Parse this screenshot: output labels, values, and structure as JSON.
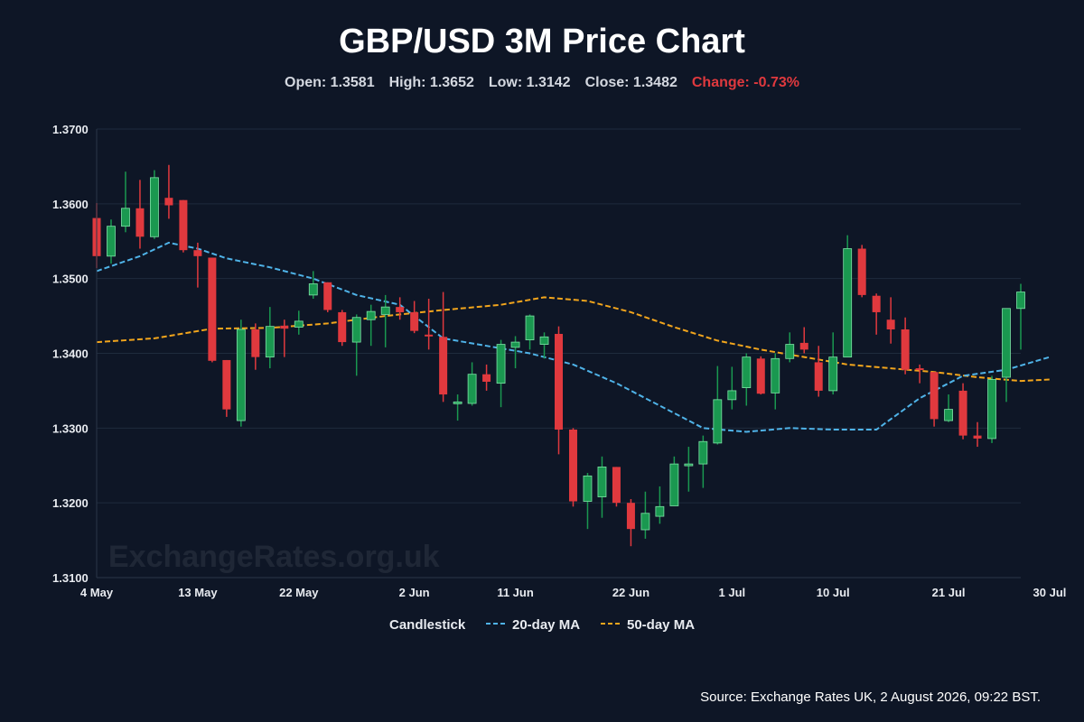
{
  "header": {
    "title": "GBP/USD 3M Price Chart",
    "open_label": "Open: 1.3581",
    "high_label": "High: 1.3652",
    "low_label": "Low: 1.3142",
    "close_label": "Close: 1.3482",
    "change_label": "Change: -0.73%"
  },
  "watermark": "ExchangeRates.org.uk",
  "legend": {
    "candles": "Candlestick",
    "ma20": "20-day MA",
    "ma50": "50-day MA"
  },
  "source": "Source: Exchange Rates UK, 2 August 2026, 09:22 BST.",
  "colors": {
    "up": "#1a9850",
    "down": "#e0393e",
    "ma20": "#4fb3e8",
    "ma50": "#f2a51c",
    "grid": "#1f2b3d",
    "background": "#0e1626"
  },
  "chart_data": {
    "type": "candlestick",
    "title": "GBP/USD 3M Price Chart",
    "ylim": [
      1.31,
      1.37
    ],
    "y_ticks": [
      "1.3100",
      "1.3200",
      "1.3300",
      "1.3400",
      "1.3500",
      "1.3600",
      "1.3700"
    ],
    "x_ticks": [
      "4 May",
      "13 May",
      "22 May",
      "2 Jun",
      "11 Jun",
      "22 Jun",
      "1 Jul",
      "10 Jul",
      "21 Jul",
      "30 Jul"
    ],
    "x_tick_index": [
      0,
      7,
      14,
      22,
      29,
      37,
      44,
      51,
      59,
      66
    ],
    "grid": true,
    "legend_position": "bottom",
    "candles": [
      {
        "o": 1.3581,
        "h": 1.3601,
        "l": 1.3514,
        "c": 1.353
      },
      {
        "o": 1.353,
        "h": 1.3579,
        "l": 1.352,
        "c": 1.357
      },
      {
        "o": 1.357,
        "h": 1.3643,
        "l": 1.3562,
        "c": 1.3594
      },
      {
        "o": 1.3594,
        "h": 1.3632,
        "l": 1.354,
        "c": 1.3556
      },
      {
        "o": 1.3556,
        "h": 1.3645,
        "l": 1.3553,
        "c": 1.3635
      },
      {
        "o": 1.3608,
        "h": 1.3652,
        "l": 1.358,
        "c": 1.3598
      },
      {
        "o": 1.3605,
        "h": 1.3605,
        "l": 1.3535,
        "c": 1.3538
      },
      {
        "o": 1.3538,
        "h": 1.3548,
        "l": 1.3488,
        "c": 1.353
      },
      {
        "o": 1.3528,
        "h": 1.3528,
        "l": 1.3388,
        "c": 1.339
      },
      {
        "o": 1.3391,
        "h": 1.3391,
        "l": 1.3315,
        "c": 1.3325
      },
      {
        "o": 1.331,
        "h": 1.3445,
        "l": 1.3302,
        "c": 1.3432
      },
      {
        "o": 1.3432,
        "h": 1.344,
        "l": 1.3378,
        "c": 1.3395
      },
      {
        "o": 1.3395,
        "h": 1.3462,
        "l": 1.338,
        "c": 1.3436
      },
      {
        "o": 1.3437,
        "h": 1.3445,
        "l": 1.3395,
        "c": 1.3433
      },
      {
        "o": 1.3435,
        "h": 1.3457,
        "l": 1.3425,
        "c": 1.3443
      },
      {
        "o": 1.3478,
        "h": 1.351,
        "l": 1.3473,
        "c": 1.3493
      },
      {
        "o": 1.3495,
        "h": 1.3495,
        "l": 1.3455,
        "c": 1.3458
      },
      {
        "o": 1.3455,
        "h": 1.3458,
        "l": 1.341,
        "c": 1.3415
      },
      {
        "o": 1.3415,
        "h": 1.3452,
        "l": 1.337,
        "c": 1.3448
      },
      {
        "o": 1.3445,
        "h": 1.3465,
        "l": 1.341,
        "c": 1.3456
      },
      {
        "o": 1.3452,
        "h": 1.3478,
        "l": 1.3408,
        "c": 1.3462
      },
      {
        "o": 1.3462,
        "h": 1.3475,
        "l": 1.3445,
        "c": 1.3455
      },
      {
        "o": 1.3455,
        "h": 1.347,
        "l": 1.3427,
        "c": 1.343
      },
      {
        "o": 1.3425,
        "h": 1.3473,
        "l": 1.3405,
        "c": 1.3423
      },
      {
        "o": 1.3422,
        "h": 1.3482,
        "l": 1.3335,
        "c": 1.3345
      },
      {
        "o": 1.3335,
        "h": 1.3345,
        "l": 1.331,
        "c": 1.3335
      },
      {
        "o": 1.3333,
        "h": 1.3388,
        "l": 1.333,
        "c": 1.3372
      },
      {
        "o": 1.3372,
        "h": 1.3385,
        "l": 1.335,
        "c": 1.3362
      },
      {
        "o": 1.336,
        "h": 1.3418,
        "l": 1.3328,
        "c": 1.3412
      },
      {
        "o": 1.3408,
        "h": 1.3423,
        "l": 1.338,
        "c": 1.3415
      },
      {
        "o": 1.3418,
        "h": 1.3452,
        "l": 1.3405,
        "c": 1.345
      },
      {
        "o": 1.3412,
        "h": 1.3428,
        "l": 1.3393,
        "c": 1.3422
      },
      {
        "o": 1.3426,
        "h": 1.3436,
        "l": 1.3265,
        "c": 1.3298
      },
      {
        "o": 1.3298,
        "h": 1.33,
        "l": 1.3195,
        "c": 1.3202
      },
      {
        "o": 1.3202,
        "h": 1.324,
        "l": 1.3165,
        "c": 1.3236
      },
      {
        "o": 1.3208,
        "h": 1.3262,
        "l": 1.318,
        "c": 1.3248
      },
      {
        "o": 1.3248,
        "h": 1.3248,
        "l": 1.3195,
        "c": 1.32
      },
      {
        "o": 1.32,
        "h": 1.3205,
        "l": 1.3142,
        "c": 1.3165
      },
      {
        "o": 1.3164,
        "h": 1.3215,
        "l": 1.3152,
        "c": 1.3186
      },
      {
        "o": 1.3182,
        "h": 1.3222,
        "l": 1.3172,
        "c": 1.3195
      },
      {
        "o": 1.3196,
        "h": 1.3262,
        "l": 1.3196,
        "c": 1.3252
      },
      {
        "o": 1.3252,
        "h": 1.3275,
        "l": 1.3215,
        "c": 1.3252
      },
      {
        "o": 1.3252,
        "h": 1.329,
        "l": 1.322,
        "c": 1.3282
      },
      {
        "o": 1.328,
        "h": 1.3383,
        "l": 1.3278,
        "c": 1.3338
      },
      {
        "o": 1.3338,
        "h": 1.3382,
        "l": 1.3325,
        "c": 1.335
      },
      {
        "o": 1.3354,
        "h": 1.34,
        "l": 1.333,
        "c": 1.3395
      },
      {
        "o": 1.3393,
        "h": 1.3396,
        "l": 1.3345,
        "c": 1.3346
      },
      {
        "o": 1.3347,
        "h": 1.34,
        "l": 1.3325,
        "c": 1.3393
      },
      {
        "o": 1.3393,
        "h": 1.3428,
        "l": 1.3388,
        "c": 1.3412
      },
      {
        "o": 1.3414,
        "h": 1.3435,
        "l": 1.34,
        "c": 1.3405
      },
      {
        "o": 1.3388,
        "h": 1.341,
        "l": 1.3342,
        "c": 1.335
      },
      {
        "o": 1.335,
        "h": 1.3428,
        "l": 1.3345,
        "c": 1.3395
      },
      {
        "o": 1.3395,
        "h": 1.3558,
        "l": 1.3395,
        "c": 1.354
      },
      {
        "o": 1.354,
        "h": 1.3545,
        "l": 1.3475,
        "c": 1.3478
      },
      {
        "o": 1.3477,
        "h": 1.348,
        "l": 1.3425,
        "c": 1.3455
      },
      {
        "o": 1.3445,
        "h": 1.3475,
        "l": 1.3413,
        "c": 1.3432
      },
      {
        "o": 1.3432,
        "h": 1.3448,
        "l": 1.3372,
        "c": 1.3378
      },
      {
        "o": 1.338,
        "h": 1.3385,
        "l": 1.336,
        "c": 1.3378
      },
      {
        "o": 1.3375,
        "h": 1.3375,
        "l": 1.3302,
        "c": 1.3312
      },
      {
        "o": 1.331,
        "h": 1.3345,
        "l": 1.3308,
        "c": 1.3325
      },
      {
        "o": 1.335,
        "h": 1.336,
        "l": 1.3285,
        "c": 1.329
      },
      {
        "o": 1.329,
        "h": 1.3308,
        "l": 1.3275,
        "c": 1.3286
      },
      {
        "o": 1.3286,
        "h": 1.337,
        "l": 1.328,
        "c": 1.3365
      },
      {
        "o": 1.3368,
        "h": 1.346,
        "l": 1.3335,
        "c": 1.346
      },
      {
        "o": 1.346,
        "h": 1.3493,
        "l": 1.3405,
        "c": 1.3482
      }
    ],
    "series": [
      {
        "name": "20-day MA",
        "x": [
          0,
          3,
          5,
          7,
          9,
          12,
          15,
          18,
          21,
          24,
          27,
          30,
          33,
          36,
          39,
          42,
          45,
          48,
          51,
          54,
          57,
          60,
          63,
          66
        ],
        "values": [
          1.351,
          1.353,
          1.3548,
          1.354,
          1.3527,
          1.3515,
          1.35,
          1.3478,
          1.3465,
          1.342,
          1.341,
          1.34,
          1.3385,
          1.336,
          1.333,
          1.33,
          1.3295,
          1.33,
          1.3298,
          1.3298,
          1.334,
          1.337,
          1.3378,
          1.3395
        ]
      },
      {
        "name": "50-day MA",
        "x": [
          0,
          4,
          8,
          12,
          16,
          20,
          24,
          28,
          31,
          34,
          37,
          40,
          43,
          46,
          49,
          52,
          55,
          58,
          61,
          64,
          66
        ],
        "values": [
          1.3415,
          1.342,
          1.3433,
          1.3434,
          1.344,
          1.345,
          1.3458,
          1.3465,
          1.3475,
          1.347,
          1.3455,
          1.3435,
          1.3417,
          1.3405,
          1.3395,
          1.3385,
          1.338,
          1.3375,
          1.3368,
          1.3363,
          1.3365
        ]
      }
    ]
  }
}
